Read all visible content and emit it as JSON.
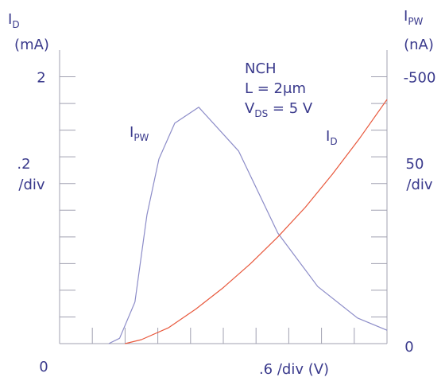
{
  "chart_data": {
    "type": "line",
    "y_title": {
      "text": "I",
      "sub": "D",
      "unit": "(mA)"
    },
    "y2_title": {
      "text": "I",
      "sub": "PW",
      "unit": "(nA)"
    },
    "y_div_label": [
      ".2",
      "/div"
    ],
    "y2_div_label": [
      "50",
      "/div"
    ],
    "x_div_label": ".6 /div (V)",
    "annotations": [
      "NCH",
      "L = 2μm",
      {
        "text": "V",
        "sub": "DS",
        "rest": " = 5 V"
      }
    ],
    "xlim": [
      0,
      6
    ],
    "xticks": [
      0
    ],
    "xminor": [
      0.6,
      1.2,
      1.8,
      2.4,
      3.0,
      3.6,
      4.2,
      4.8,
      5.4
    ],
    "ylim": [
      0,
      2.2
    ],
    "yticks": [
      0,
      2
    ],
    "yminor": [
      0.2,
      0.4,
      0.6,
      0.8,
      1.0,
      1.2,
      1.4,
      1.6,
      1.8
    ],
    "y2lim": [
      0,
      -550
    ],
    "y2ticks": [
      0,
      -500
    ],
    "y2minor": [
      -50,
      -100,
      -150,
      -200,
      -250,
      -300,
      -350,
      -400,
      -450
    ],
    "series": [
      {
        "name": "I",
        "sub": "PW",
        "color": "#8c8cc8",
        "axis": "y2",
        "x": [
          0.9,
          1.1,
          1.38,
          1.6,
          1.82,
          2.11,
          2.55,
          3.28,
          4.0,
          4.73,
          5.46,
          6.0
        ],
        "values": [
          0,
          -10,
          -78,
          -241,
          -346,
          -413,
          -443,
          -361,
          -207,
          -107,
          -48,
          -25
        ]
      },
      {
        "name": "I",
        "sub": "D",
        "color": "#e8583c",
        "axis": "y",
        "x": [
          1.2,
          1.5,
          2.0,
          2.5,
          3.0,
          3.5,
          4.0,
          4.5,
          5.0,
          5.5,
          6.0
        ],
        "values": [
          0,
          0.03,
          0.12,
          0.26,
          0.42,
          0.6,
          0.8,
          1.02,
          1.27,
          1.54,
          1.83
        ]
      }
    ]
  }
}
